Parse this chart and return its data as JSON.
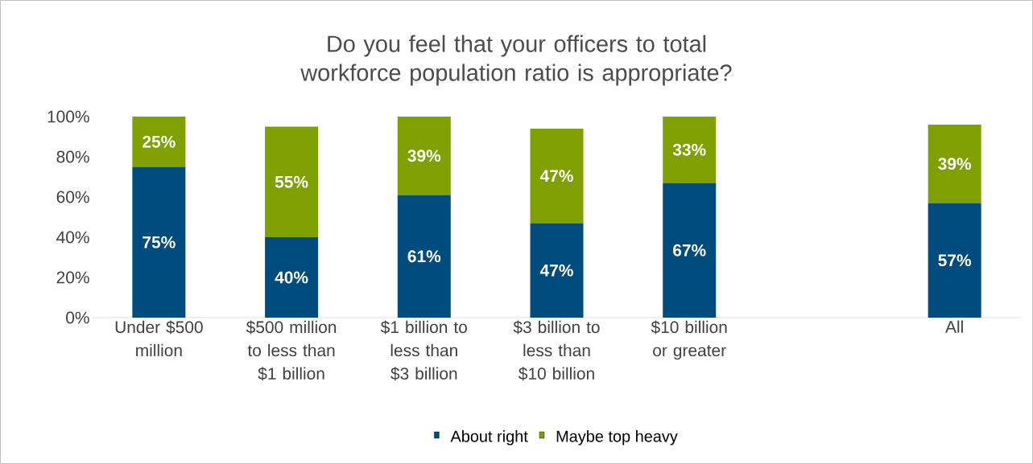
{
  "chart_data": {
    "type": "bar",
    "stacked": true,
    "title": "Do you feel that your officers to total workforce population ratio is appropriate?",
    "categories": [
      "Under $500 million",
      "$500 million to less than $1 billion",
      "$1 billion to less than $3 billion",
      "$3 billion to less than $10 billion",
      "$10 billion or greater",
      null,
      "All"
    ],
    "series": [
      {
        "name": "About right",
        "color": "#004c7f",
        "values": [
          75,
          40,
          61,
          47,
          67,
          null,
          57
        ],
        "value_labels": [
          "75%",
          "40%",
          "61%",
          "47%",
          "67%",
          null,
          "57%"
        ]
      },
      {
        "name": "Maybe top heavy",
        "color": "#7fa000",
        "values": [
          25,
          55,
          39,
          47,
          33,
          null,
          39
        ],
        "value_labels": [
          "25%",
          "55%",
          "39%",
          "47%",
          "33%",
          null,
          "39%"
        ]
      }
    ],
    "ylim": [
      0,
      100
    ],
    "yticks": [
      {
        "value": 0,
        "label": "0%"
      },
      {
        "value": 20,
        "label": "20%"
      },
      {
        "value": 40,
        "label": "40%"
      },
      {
        "value": 60,
        "label": "60%"
      },
      {
        "value": 80,
        "label": "80%"
      },
      {
        "value": 100,
        "label": "100%"
      }
    ],
    "legend": "bottom"
  }
}
